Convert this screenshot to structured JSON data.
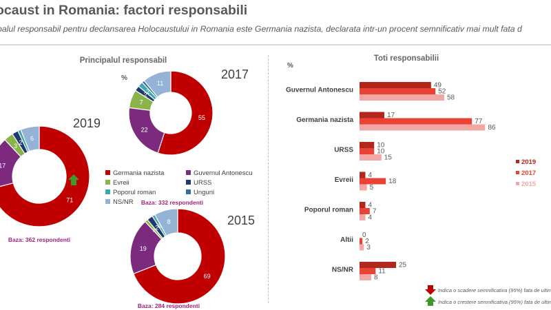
{
  "header": {
    "title": "ocaust in Romania: factori responsabili",
    "subtitle": "palul responsabil pentru declansarea Holocaustului in Romania este Germania nazista, declarata intr-un procent semnificativ mai mult fata d"
  },
  "left_panel": {
    "title": "Principalul responsabil",
    "unit": "%"
  },
  "right_panel": {
    "title": "Toti responsabilii",
    "unit": "%"
  },
  "colors": {
    "Germania nazista": "#c00000",
    "Guvernul Antonescu": "#7b2a7e",
    "Evreii": "#8ab34a",
    "URSS": "#1f3a6e",
    "Poporul roman": "#3fa7b4",
    "Ungurii": "#2f6e9e",
    "NS/NR": "#95b3d7",
    "bar_2019": "#b2261b",
    "bar_2017": "#ea4335",
    "bar_2015": "#f2a7a5",
    "arrow_up": "#3e9a2a",
    "arrow_down": "#c00000"
  },
  "chart_data": [
    {
      "type": "pie",
      "title": "2019",
      "base": "Baza: 362 respondenti",
      "categories": [
        "Germania nazista",
        "Guvernul Antonescu",
        "Evreii",
        "URSS",
        "Poporul roman",
        "Ungurii",
        "NS/NR"
      ],
      "values": [
        71,
        17,
        3,
        2,
        1,
        0,
        6
      ],
      "labels": [
        "71",
        "17",
        "3",
        "2",
        "",
        "",
        "6"
      ],
      "annotations": [
        {
          "category": "Germania nazista",
          "marker": "arrow-up"
        }
      ]
    },
    {
      "type": "pie",
      "title": "2017",
      "base": "Baza: 332 respondenti",
      "categories": [
        "Germania nazista",
        "Guvernul Antonescu",
        "Evreii",
        "URSS",
        "Poporul roman",
        "Ungurii",
        "NS/NR"
      ],
      "values": [
        55,
        22,
        7,
        2,
        2,
        1,
        11
      ],
      "labels": [
        "55",
        "22",
        "7",
        "2",
        "2",
        "",
        "11"
      ]
    },
    {
      "type": "pie",
      "title": "2015",
      "base": "Baza: 284 respondenti",
      "categories": [
        "Germania nazista",
        "Guvernul Antonescu",
        "Evreii",
        "URSS",
        "Poporul roman",
        "Ungurii",
        "NS/NR"
      ],
      "values": [
        69,
        19,
        1,
        2,
        1,
        0,
        8
      ],
      "labels": [
        "69",
        "19",
        "1",
        "2",
        "1",
        "",
        "8"
      ]
    },
    {
      "type": "bar",
      "orientation": "horizontal",
      "title": "Toti responsabilii",
      "ylabel": "%",
      "categories": [
        "Guvernul Antonescu",
        "Germania nazista",
        "URSS",
        "Evreii",
        "Poporul roman",
        "Altii",
        "NS/NR"
      ],
      "series": [
        {
          "name": "2019",
          "values": [
            49,
            17,
            10,
            4,
            4,
            0,
            25
          ]
        },
        {
          "name": "2017",
          "values": [
            52,
            77,
            10,
            18,
            7,
            2,
            11
          ]
        },
        {
          "name": "2015",
          "values": [
            58,
            86,
            15,
            5,
            4,
            3,
            8
          ]
        }
      ],
      "xlim": [
        0,
        100
      ]
    }
  ],
  "pie_legend": [
    {
      "label": "Germania nazista",
      "color": "#c00000"
    },
    {
      "label": "Guvernul Antonescu",
      "color": "#7b2a7e"
    },
    {
      "label": "Evreii",
      "color": "#8ab34a"
    },
    {
      "label": "URSS",
      "color": "#1f3a6e"
    },
    {
      "label": "Poporul roman",
      "color": "#3fa7b4"
    },
    {
      "label": "Ungurii",
      "color": "#2f6e9e"
    },
    {
      "label": "NS/NR",
      "color": "#95b3d7"
    }
  ],
  "notes": {
    "down": "Indica o scadere semnificativa (95%) fata de ultim",
    "up": "Indica o crestere semnificativa (95%) fata de ultim"
  }
}
